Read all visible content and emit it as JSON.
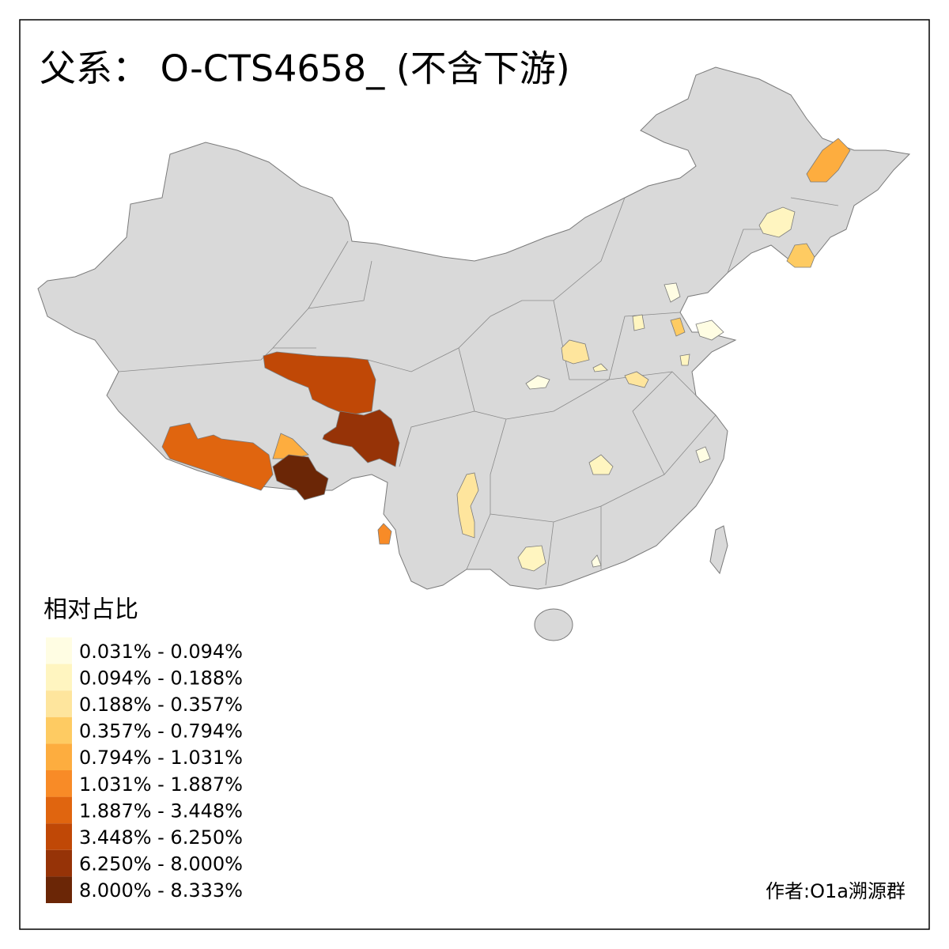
{
  "title": "父系： O-CTS4658_ (不含下游)",
  "legend": {
    "title": "相对占比",
    "items": [
      {
        "label": "0.031% - 0.094%",
        "color": "#fffde3"
      },
      {
        "label": "0.094% - 0.188%",
        "color": "#fff5c0"
      },
      {
        "label": "0.188% - 0.357%",
        "color": "#fee59d"
      },
      {
        "label": "0.357% - 0.794%",
        "color": "#fecb62"
      },
      {
        "label": "0.794% - 1.031%",
        "color": "#fdad3f"
      },
      {
        "label": "1.031% - 1.887%",
        "color": "#f88b27"
      },
      {
        "label": "1.887% - 3.448%",
        "color": "#e0650f"
      },
      {
        "label": "3.448% - 6.250%",
        "color": "#c04806"
      },
      {
        "label": "6.250% - 8.000%",
        "color": "#963307"
      },
      {
        "label": "8.000% - 8.333%",
        "color": "#6b2606"
      }
    ]
  },
  "author": "作者:O1a溯源群"
}
